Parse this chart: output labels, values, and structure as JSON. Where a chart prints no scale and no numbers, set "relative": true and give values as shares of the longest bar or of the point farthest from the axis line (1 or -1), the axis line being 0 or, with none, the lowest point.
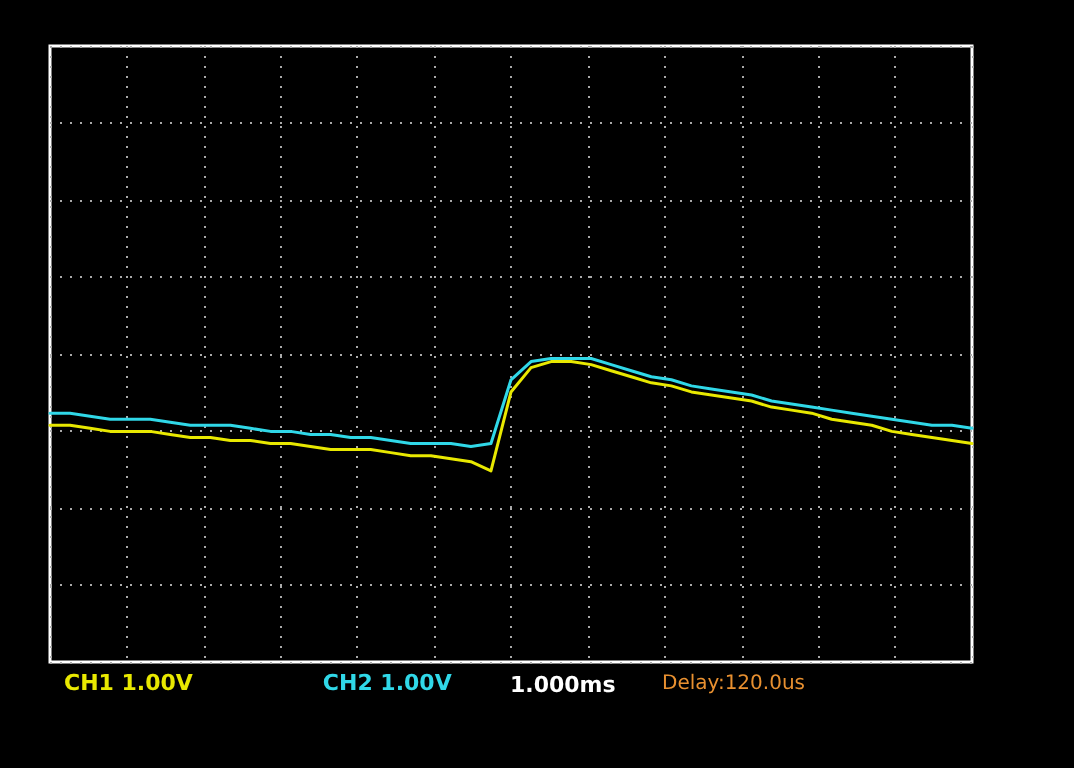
{
  "chart_data": {
    "type": "line",
    "relative": true,
    "grid": true,
    "legend": "bottom left",
    "marker": "none",
    "line_style": "solid",
    "categories": [
      null,
      null,
      null,
      null,
      null,
      null,
      null,
      null,
      null,
      null,
      null,
      null,
      null,
      null,
      null,
      null,
      null,
      null,
      null,
      null,
      null,
      null,
      null,
      null,
      null,
      null,
      null,
      null,
      null,
      null,
      null,
      null,
      null,
      null,
      null,
      null,
      null,
      null,
      null,
      null,
      null,
      null,
      null,
      null,
      null,
      null,
      null
    ],
    "annotations": [
      "1.000ms",
      "Delay:120.0us"
    ],
    "series": [
      {
        "name": "CH1 1.00V",
        "color": "#e8e800",
        "values": [
          0.78,
          0.78,
          0.77,
          0.76,
          0.76,
          0.76,
          0.75,
          0.74,
          0.74,
          0.73,
          0.73,
          0.72,
          0.72,
          0.71,
          0.7,
          0.7,
          0.7,
          0.69,
          0.68,
          0.68,
          0.67,
          0.66,
          0.63,
          0.89,
          0.97,
          0.99,
          0.99,
          0.98,
          0.96,
          0.94,
          0.92,
          0.91,
          0.89,
          0.88,
          0.87,
          0.86,
          0.84,
          0.83,
          0.82,
          0.8,
          0.79,
          0.78,
          0.76,
          0.75,
          0.74,
          0.73,
          0.72
        ]
      },
      {
        "name": "CH2 1.00V",
        "color": "#30d8e8",
        "values": [
          0.82,
          0.82,
          0.81,
          0.8,
          0.8,
          0.8,
          0.79,
          0.78,
          0.78,
          0.78,
          0.77,
          0.76,
          0.76,
          0.75,
          0.75,
          0.74,
          0.74,
          0.73,
          0.72,
          0.72,
          0.72,
          0.71,
          0.72,
          0.93,
          0.99,
          1,
          1,
          1,
          0.98,
          0.96,
          0.94,
          0.93,
          0.91,
          0.9,
          0.89,
          0.88,
          0.86,
          0.85,
          0.84,
          0.83,
          0.82,
          0.81,
          0.8,
          0.79,
          0.78,
          0.78,
          0.77
        ]
      }
    ]
  }
}
